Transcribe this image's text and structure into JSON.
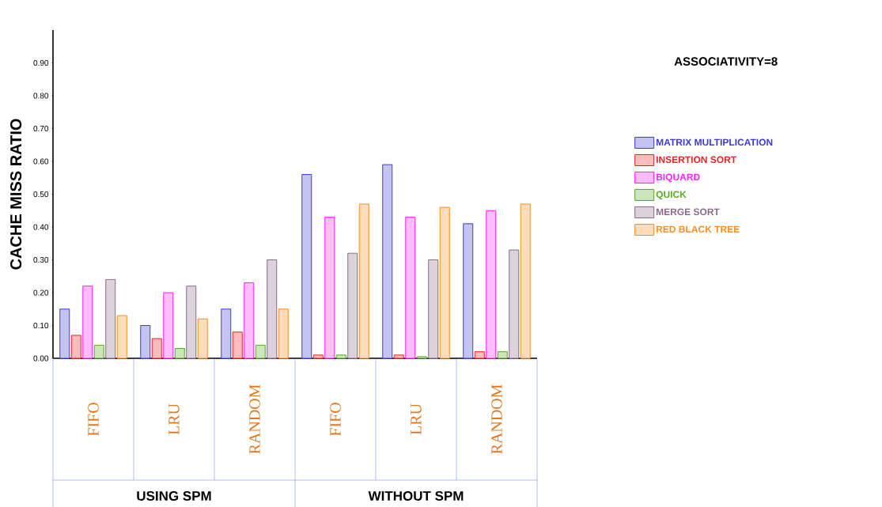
{
  "chart_data": {
    "type": "bar",
    "title": "ASSOCIATIVITY=8",
    "ylabel": "CACHE MISS RATIO",
    "categories": [
      "FIFO",
      "LRU",
      "RANDOM",
      "FIFO",
      "LRU",
      "RANDOM"
    ],
    "annotations": [
      "USING SPM",
      "WITHOUT  SPM"
    ],
    "series": [
      {
        "name": "MATRIX MULTIPLICATION",
        "color": "#3a3ad8",
        "values": [
          0.15,
          0.1,
          0.15,
          0.56,
          0.59,
          0.41
        ]
      },
      {
        "name": "INSERTION SORT",
        "color": "#ee2020",
        "values": [
          0.07,
          0.06,
          0.08,
          0.01,
          0.01,
          0.02
        ]
      },
      {
        "name": "BIQUARD",
        "color": "#ff20ff",
        "values": [
          0.22,
          0.2,
          0.23,
          0.43,
          0.43,
          0.45
        ]
      },
      {
        "name": "QUICK",
        "color": "#55aa20",
        "values": [
          0.04,
          0.03,
          0.04,
          0.01,
          0.005,
          0.02
        ]
      },
      {
        "name": "MERGE SORT",
        "color": "#8a6a8a",
        "values": [
          0.24,
          0.22,
          0.3,
          0.32,
          0.3,
          0.33
        ]
      },
      {
        "name": "RED BLACK TREE",
        "color": "#ff8c20",
        "values": [
          0.13,
          0.12,
          0.15,
          0.47,
          0.46,
          0.47
        ]
      }
    ],
    "ylim": [
      0,
      1.0
    ],
    "yticks": [
      {
        "value": 0,
        "label": "0.00"
      },
      {
        "value": 0.1,
        "label": "0.10"
      },
      {
        "value": 0.2,
        "label": "0.20"
      },
      {
        "value": 0.3,
        "label": "0.30"
      },
      {
        "value": 0.4,
        "label": "0.40"
      },
      {
        "value": 0.5,
        "label": "0.50"
      },
      {
        "value": 0.6,
        "label": "0.60"
      },
      {
        "value": 0.7,
        "label": "0.70"
      },
      {
        "value": 0.8,
        "label": "0.80"
      },
      {
        "value": 0.9,
        "label": "0.90"
      }
    ],
    "legend": "right"
  }
}
